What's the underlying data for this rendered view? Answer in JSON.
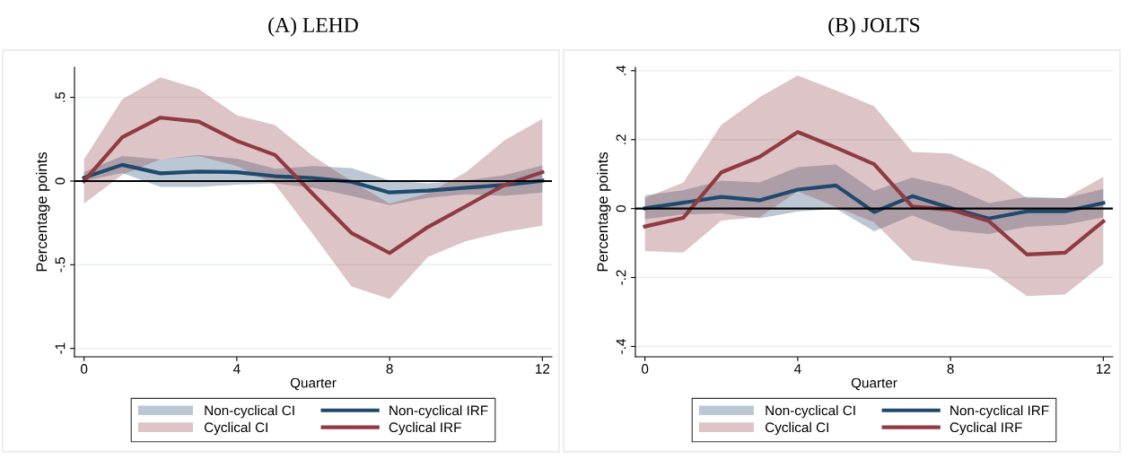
{
  "chart_data": [
    {
      "type": "line",
      "title": "(A) LEHD",
      "xlabel": "Quarter",
      "ylabel": "Percentage points",
      "x": [
        0,
        1,
        2,
        3,
        4,
        5,
        6,
        7,
        8,
        9,
        10,
        11,
        12
      ],
      "xlim": [
        -0.25,
        12.25
      ],
      "xticks": [
        0,
        4,
        8,
        12
      ],
      "ylim": [
        -1.05,
        0.68
      ],
      "yticks": [
        {
          "value": 0.5,
          "label": ".5"
        },
        0,
        {
          "value": -0.5,
          "label": "-.5"
        },
        -1
      ],
      "grid": "y",
      "legend": "bottom",
      "annotations": [
        "Non-cyclical CI",
        "Cyclical CI"
      ],
      "ref_lines": [
        {
          "axis": "y",
          "value": 0,
          "color": "#000000"
        }
      ],
      "series": [
        {
          "name": "Non-cyclical IRF",
          "color": "#1f4a6e",
          "values": [
            0.02,
            0.097,
            0.046,
            0.057,
            0.053,
            0.029,
            0.018,
            -0.004,
            -0.068,
            -0.057,
            -0.04,
            -0.024,
            0.002
          ],
          "lower": [
            0,
            0.048,
            -0.035,
            -0.035,
            -0.022,
            -0.013,
            -0.04,
            -0.088,
            -0.143,
            -0.1,
            -0.079,
            -0.088,
            -0.068
          ],
          "upper": [
            0.053,
            0.15,
            0.13,
            0.156,
            0.134,
            0.073,
            0.09,
            0.077,
            0.004,
            -0.013,
            0.004,
            0.035,
            0.093
          ]
        },
        {
          "name": "Cyclical IRF",
          "color": "#903a42",
          "values": [
            0,
            0.262,
            0.379,
            0.355,
            0.24,
            0.156,
            -0.079,
            -0.31,
            -0.43,
            -0.275,
            -0.15,
            -0.024,
            0.053
          ],
          "lower": [
            -0.134,
            0.037,
            0.13,
            0.15,
            0.09,
            -0.02,
            -0.32,
            -0.63,
            -0.705,
            -0.454,
            -0.359,
            -0.304,
            -0.267
          ],
          "upper": [
            0.13,
            0.489,
            0.62,
            0.55,
            0.394,
            0.335,
            0.148,
            0.0,
            -0.134,
            -0.073,
            0.053,
            0.242,
            0.372
          ]
        }
      ]
    },
    {
      "type": "line",
      "title": "(B) JOLTS",
      "xlabel": "Quarter",
      "ylabel": "Percentage points",
      "x": [
        0,
        1,
        2,
        3,
        4,
        5,
        6,
        7,
        8,
        9,
        10,
        11,
        12
      ],
      "xlim": [
        -0.25,
        12.25
      ],
      "xticks": [
        0,
        4,
        8,
        12
      ],
      "ylim": [
        -0.43,
        0.41
      ],
      "yticks": [
        {
          "value": 0.4,
          "label": ".4"
        },
        {
          "value": 0.2,
          "label": ".2"
        },
        0,
        {
          "value": -0.2,
          "label": "-.2"
        },
        {
          "value": -0.4,
          "label": "-.4"
        }
      ],
      "grid": "y",
      "legend": "bottom",
      "annotations": [
        "Non-cyclical CI",
        "Cyclical CI"
      ],
      "ref_lines": [
        {
          "axis": "y",
          "value": 0,
          "color": "#000000"
        }
      ],
      "series": [
        {
          "name": "Non-cyclical IRF",
          "color": "#1f4a6e",
          "values": [
            0.001,
            0.017,
            0.034,
            0.024,
            0.055,
            0.067,
            -0.01,
            0.036,
            0.002,
            -0.029,
            -0.008,
            -0.008,
            0.016
          ],
          "lower": [
            -0.031,
            -0.017,
            -0.014,
            -0.028,
            -0.009,
            0.0,
            -0.066,
            -0.02,
            -0.063,
            -0.074,
            -0.053,
            -0.047,
            -0.025
          ],
          "upper": [
            0.039,
            0.053,
            0.081,
            0.076,
            0.12,
            0.128,
            0.052,
            0.09,
            0.064,
            0.016,
            0.034,
            0.03,
            0.057
          ]
        },
        {
          "name": "Cyclical IRF",
          "color": "#903a42",
          "values": [
            -0.052,
            -0.027,
            0.105,
            0.15,
            0.222,
            0.177,
            0.129,
            0.006,
            -0.003,
            -0.036,
            -0.133,
            -0.128,
            -0.037
          ],
          "lower": [
            -0.123,
            -0.128,
            -0.035,
            -0.025,
            0.05,
            0.005,
            -0.04,
            -0.15,
            -0.165,
            -0.177,
            -0.254,
            -0.249,
            -0.161
          ],
          "upper": [
            0.031,
            0.075,
            0.243,
            0.323,
            0.386,
            0.343,
            0.297,
            0.164,
            0.16,
            0.109,
            0.03,
            0.03,
            0.092
          ]
        }
      ]
    }
  ]
}
